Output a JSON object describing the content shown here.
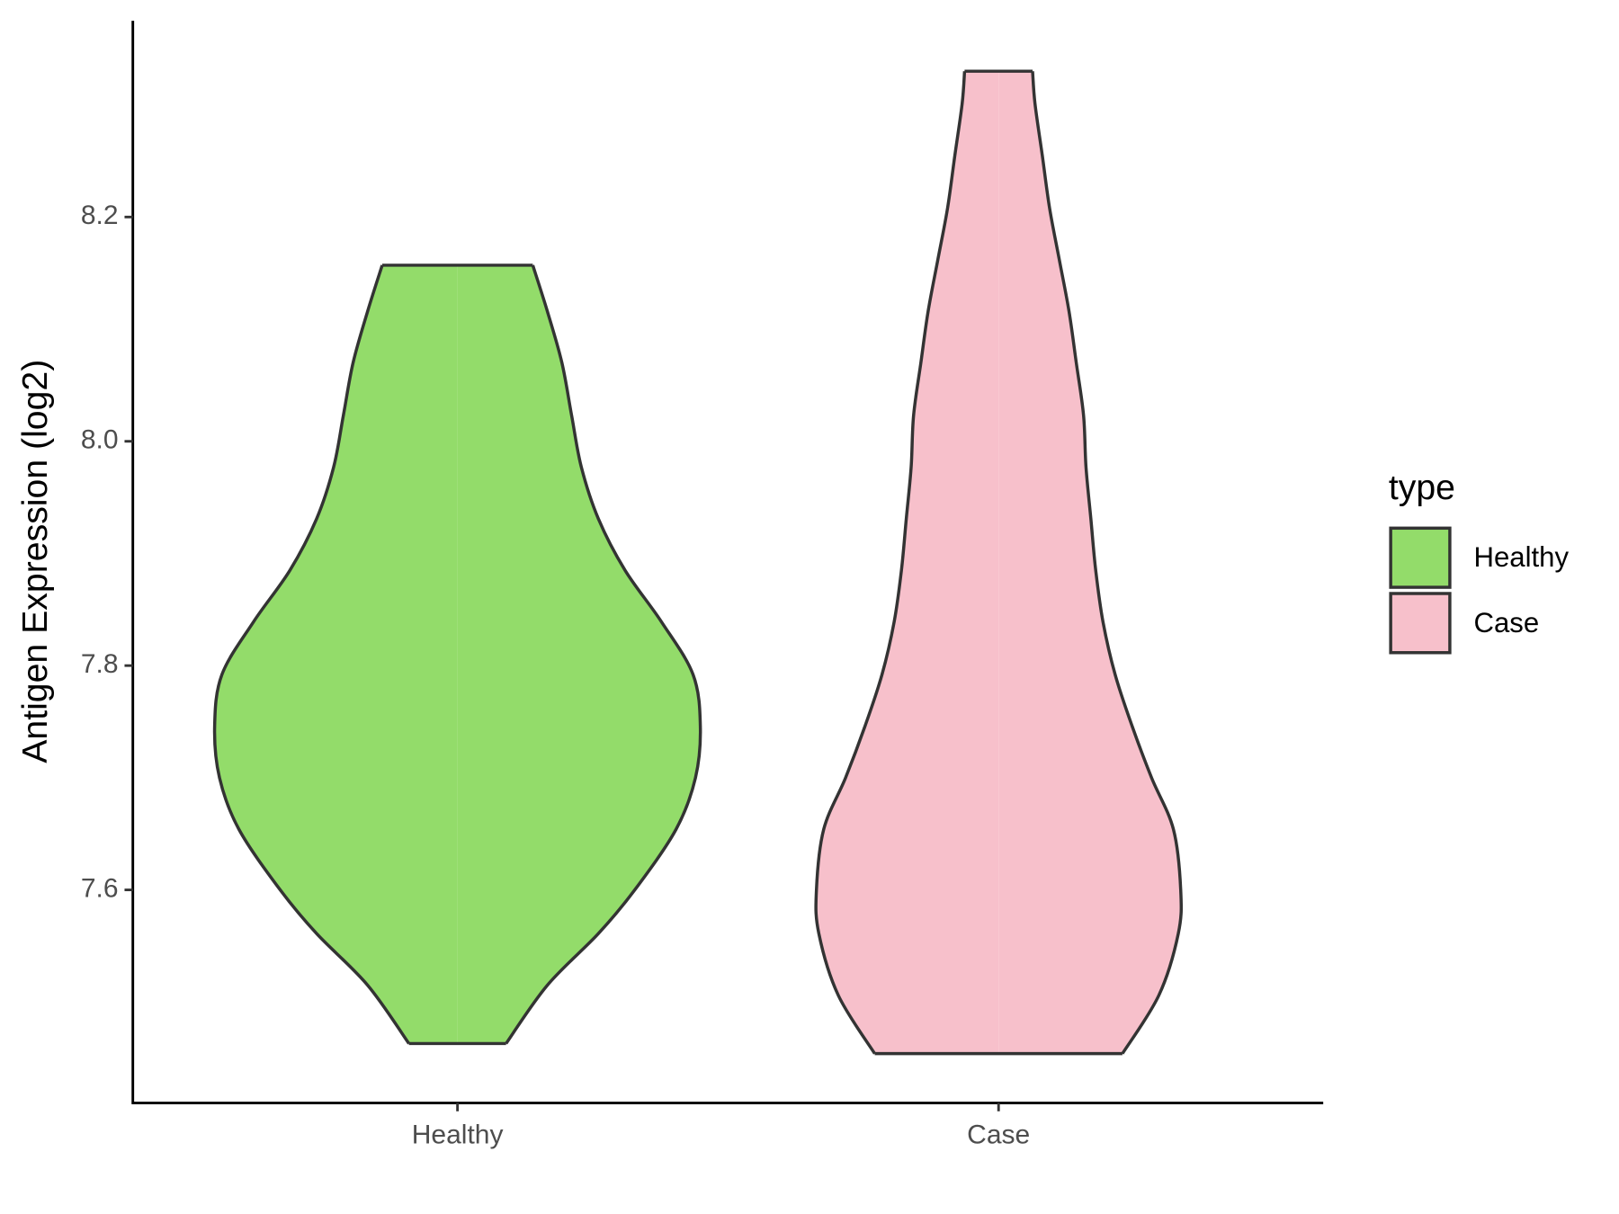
{
  "chart_data": {
    "type": "violin",
    "y_label": "Antigen Expression (log2)",
    "categories": [
      "Healthy",
      "Case"
    ],
    "legend_title": "type",
    "ylim": [
      7.41,
      8.375
    ],
    "yticks": [
      7.6,
      7.8,
      {
        "value": 8.0,
        "label": "8.0"
      },
      8.2
    ],
    "series": [
      {
        "name": "Healthy",
        "color": "#93dc6a",
        "y": [
          7.463,
          7.515,
          7.561,
          7.6,
          7.654,
          7.7,
          7.746,
          7.792,
          7.839,
          7.885,
          7.931,
          7.977,
          8.023,
          8.07,
          8.116,
          8.157
        ],
        "density": [
          0.2,
          0.37,
          0.58,
          0.73,
          0.9,
          0.98,
          1.0,
          0.97,
          0.84,
          0.69,
          0.58,
          0.51,
          0.47,
          0.43,
          0.37,
          0.31
        ]
      },
      {
        "name": "Case",
        "color": "#f7c0cb",
        "y": [
          7.454,
          7.506,
          7.561,
          7.6,
          7.654,
          7.7,
          7.746,
          7.792,
          7.839,
          7.885,
          7.931,
          7.977,
          8.023,
          8.07,
          8.116,
          8.162,
          8.208,
          8.255,
          8.301,
          8.33
        ],
        "density": [
          0.51,
          0.66,
          0.74,
          0.75,
          0.72,
          0.63,
          0.55,
          0.48,
          0.43,
          0.4,
          0.38,
          0.36,
          0.35,
          0.32,
          0.29,
          0.25,
          0.21,
          0.18,
          0.15,
          0.14
        ]
      }
    ]
  }
}
